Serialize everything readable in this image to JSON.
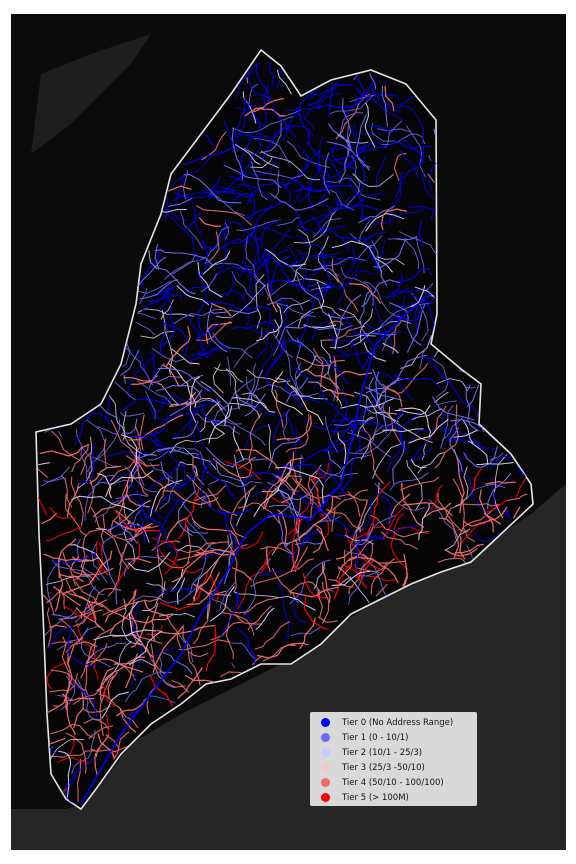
{
  "legend": {
    "items": [
      {
        "label": "Tier 0 (No Address Range)",
        "color": "#0000ff"
      },
      {
        "label": "Tier 1 (0 - 10/1)",
        "color": "#6b6bff"
      },
      {
        "label": "Tier 2 (10/1 - 25/3)",
        "color": "#c9c9ff"
      },
      {
        "label": "Tier 3 (25/3 -50/10)",
        "color": "#f5c6c6"
      },
      {
        "label": "Tier 4 (50/10 - 100/100)",
        "color": "#f06a6a"
      },
      {
        "label": "Tier 5 (> 100M)",
        "color": "#ff0000"
      }
    ]
  },
  "map": {
    "background": "#0b0b0b",
    "water_color": "#262626",
    "boundary_color": "#e6e6e6"
  }
}
